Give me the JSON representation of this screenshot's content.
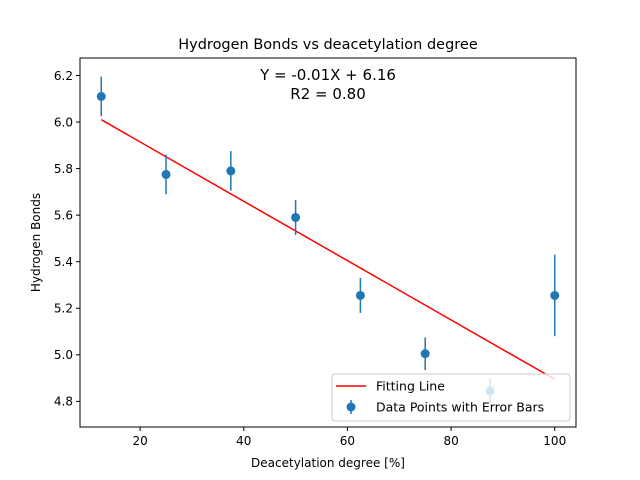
{
  "chart_data": {
    "type": "scatter",
    "title": "Hydrogen Bonds vs deacetylation degree",
    "xlabel": "Deacetylation degree [%]",
    "ylabel": "Hydrogen Bonds",
    "xlim": [
      8.4,
      104.1
    ],
    "ylim": [
      4.69,
      6.275
    ],
    "xticks": [
      "20",
      "40",
      "60",
      "80",
      "100"
    ],
    "xtick_values": [
      20,
      40,
      60,
      80,
      100
    ],
    "yticks": [
      "4.8",
      "5.0",
      "5.2",
      "5.4",
      "5.6",
      "5.8",
      "6.0",
      "6.2"
    ],
    "ytick_values": [
      4.8,
      5.0,
      5.2,
      5.4,
      5.6,
      5.8,
      6.0,
      6.2
    ],
    "grid": false,
    "legend_position": "lower right",
    "equation": "Y = -0.01X + 6.16",
    "r2": "R2 = 0.80",
    "series": [
      {
        "name": "Data Points with Error Bars",
        "kind": "errorbar",
        "color": "#1f77b4",
        "x": [
          12.5,
          25.0,
          37.5,
          50.0,
          62.5,
          75.0,
          87.5,
          100.0
        ],
        "y": [
          6.11,
          5.775,
          5.79,
          5.59,
          5.255,
          5.005,
          4.845,
          5.255
        ],
        "yerr": [
          0.085,
          0.085,
          0.085,
          0.075,
          0.075,
          0.07,
          0.055,
          0.175
        ]
      },
      {
        "name": "Fitting Line",
        "kind": "line",
        "color": "#ff0000",
        "x": [
          12.5,
          100.0
        ],
        "y": [
          6.01,
          4.895
        ]
      }
    ]
  }
}
